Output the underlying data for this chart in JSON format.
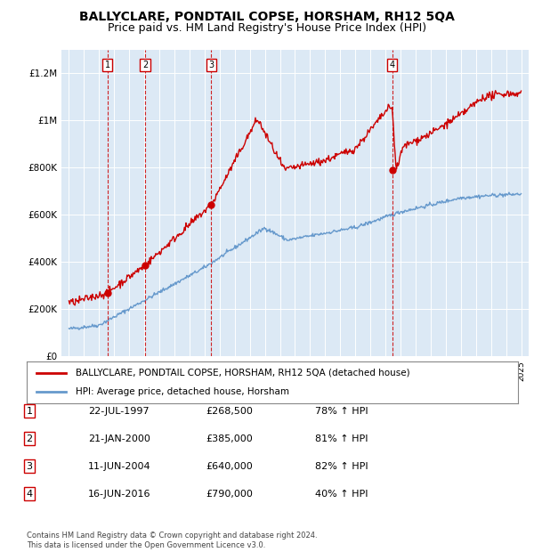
{
  "title": "BALLYCLARE, PONDTAIL COPSE, HORSHAM, RH12 5QA",
  "subtitle": "Price paid vs. HM Land Registry's House Price Index (HPI)",
  "title_fontsize": 10,
  "subtitle_fontsize": 9,
  "background_color": "#ffffff",
  "plot_bg_color": "#dce9f5",
  "grid_color": "#ffffff",
  "ylim": [
    0,
    1300000
  ],
  "yticks": [
    0,
    200000,
    400000,
    600000,
    800000,
    1000000,
    1200000
  ],
  "ytick_labels": [
    "£0",
    "£200K",
    "£400K",
    "£600K",
    "£800K",
    "£1M",
    "£1.2M"
  ],
  "sale_dates": [
    1997.55,
    2000.05,
    2004.44,
    2016.46
  ],
  "sale_prices": [
    268500,
    385000,
    640000,
    790000
  ],
  "sale_labels": [
    "1",
    "2",
    "3",
    "4"
  ],
  "red_line_color": "#cc0000",
  "blue_line_color": "#6699cc",
  "sale_dot_color": "#cc0000",
  "vline_color": "#cc0000",
  "legend_entries": [
    "BALLYCLARE, PONDTAIL COPSE, HORSHAM, RH12 5QA (detached house)",
    "HPI: Average price, detached house, Horsham"
  ],
  "table_data": [
    [
      "1",
      "22-JUL-1997",
      "£268,500",
      "78% ↑ HPI"
    ],
    [
      "2",
      "21-JAN-2000",
      "£385,000",
      "81% ↑ HPI"
    ],
    [
      "3",
      "11-JUN-2004",
      "£640,000",
      "82% ↑ HPI"
    ],
    [
      "4",
      "16-JUN-2016",
      "£790,000",
      "40% ↑ HPI"
    ]
  ],
  "footer": "Contains HM Land Registry data © Crown copyright and database right 2024.\nThis data is licensed under the Open Government Licence v3.0."
}
